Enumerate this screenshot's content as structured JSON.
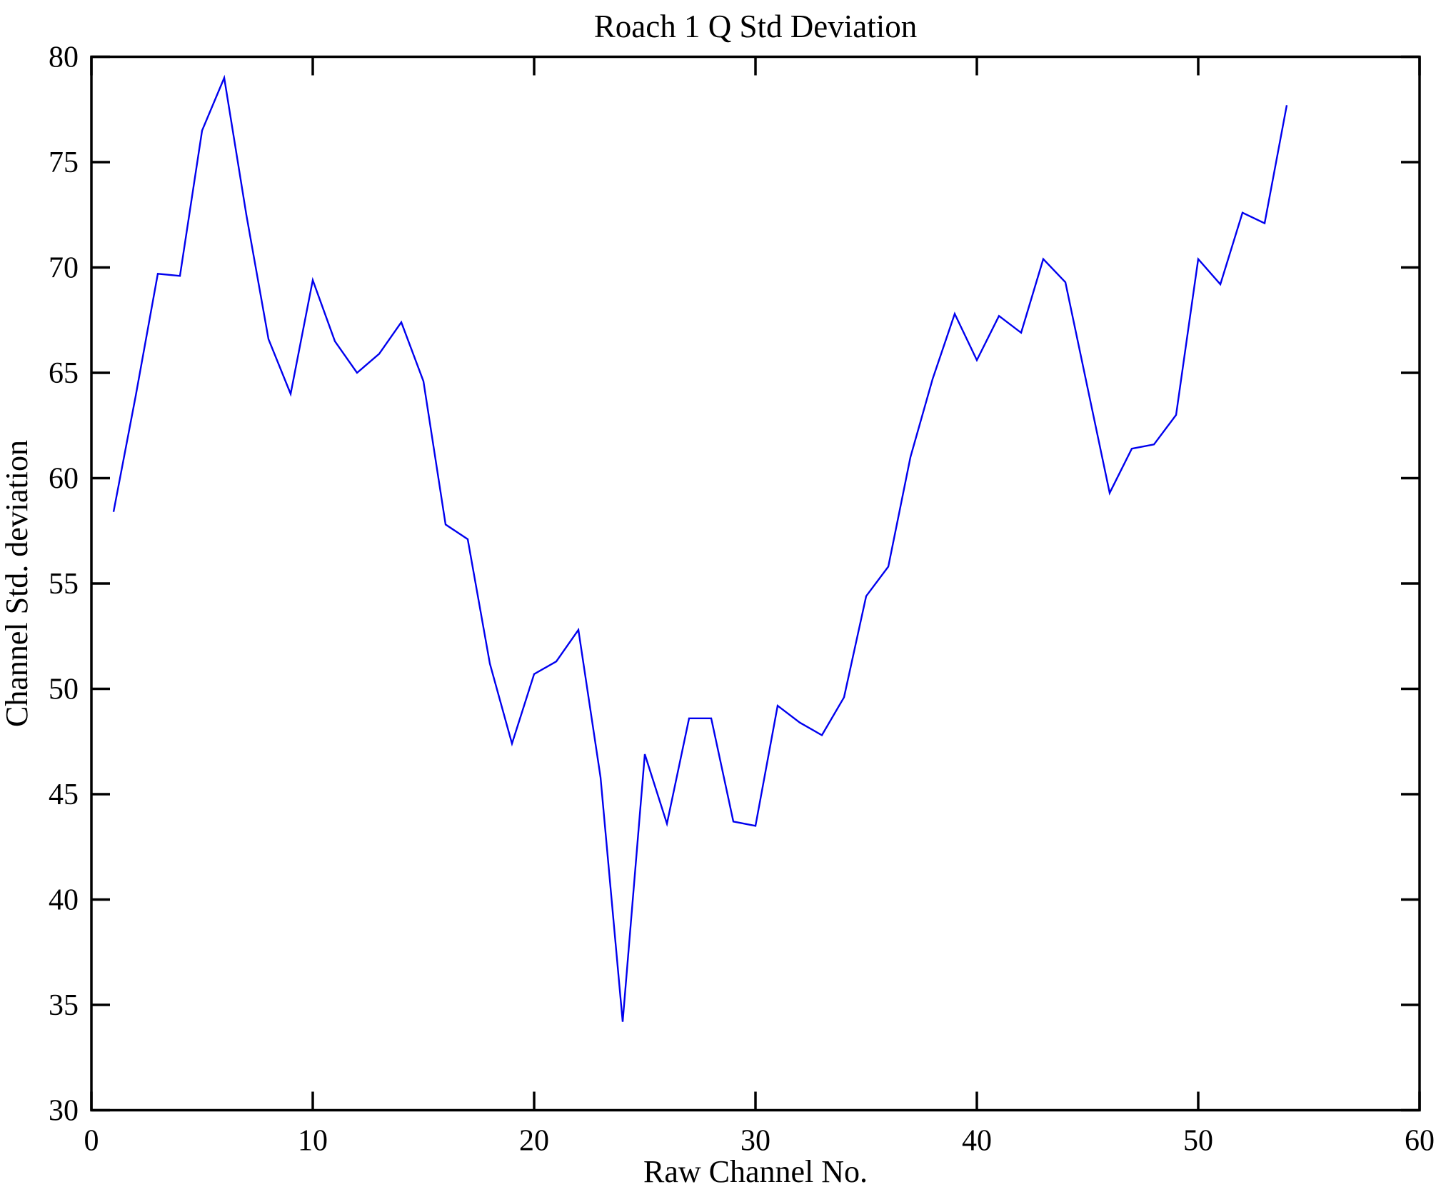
{
  "title": "Roach 1 Q Std Deviation",
  "chart_data": {
    "type": "line",
    "title": "Roach 1 Q Std Deviation",
    "xlabel": "Raw Channel No.",
    "ylabel": "Channel Std. deviation",
    "xlim": [
      0,
      60
    ],
    "ylim": [
      30,
      80
    ],
    "xticks": [
      0,
      10,
      20,
      30,
      40,
      50,
      60
    ],
    "yticks": [
      30,
      35,
      40,
      45,
      50,
      55,
      60,
      65,
      70,
      75,
      80
    ],
    "grid": false,
    "legend_position": "none",
    "line_color": "#0000EE",
    "axis_color": "#000000",
    "background_color": "#FFFFFF",
    "x": [
      1,
      2,
      3,
      4,
      5,
      6,
      7,
      8,
      9,
      10,
      11,
      12,
      13,
      14,
      15,
      16,
      17,
      18,
      19,
      20,
      21,
      22,
      23,
      24,
      25,
      26,
      27,
      28,
      29,
      30,
      31,
      32,
      33,
      34,
      35,
      36,
      37,
      38,
      39,
      40,
      41,
      42,
      43,
      44,
      45,
      46,
      47,
      48,
      49,
      50,
      51,
      52,
      53,
      54
    ],
    "values": [
      58.4,
      63.9,
      69.7,
      69.6,
      76.5,
      79.0,
      72.5,
      66.6,
      64.0,
      69.4,
      66.5,
      65.0,
      65.9,
      67.4,
      64.6,
      57.8,
      57.1,
      51.2,
      47.4,
      50.7,
      51.3,
      52.8,
      45.8,
      34.2,
      46.9,
      43.6,
      48.6,
      48.6,
      43.7,
      43.5,
      49.2,
      48.4,
      47.8,
      49.6,
      54.4,
      55.8,
      61.0,
      64.7,
      67.8,
      65.6,
      67.7,
      66.9,
      70.4,
      69.3,
      64.3,
      59.3,
      61.4,
      61.6,
      63.0,
      70.4,
      69.2,
      72.6,
      72.1,
      77.7
    ]
  }
}
